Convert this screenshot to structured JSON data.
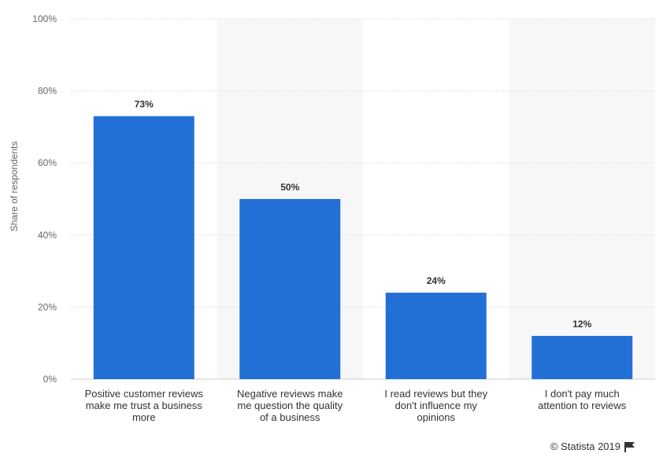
{
  "chart_data": {
    "type": "bar",
    "ylabel": "Share of respondents",
    "ylim": [
      0,
      100
    ],
    "yticks": [
      0,
      20,
      40,
      60,
      80,
      100
    ],
    "tick_suffix": "%",
    "grid": true,
    "categories": [
      [
        "Positive customer reviews",
        "make me trust a business",
        "more"
      ],
      [
        "Negative reviews make",
        "me question the quality",
        "of a business"
      ],
      [
        "I read reviews but they",
        "don't influence my",
        "opinions"
      ],
      [
        "I don't pay much",
        "attention to reviews"
      ]
    ],
    "values": [
      73,
      50,
      24,
      12
    ],
    "data_labels": [
      "73%",
      "50%",
      "24%",
      "12%"
    ],
    "bar_color": "#2270d6",
    "band_color": "#f7f7f7"
  },
  "credit": {
    "text": "© Statista 2019",
    "icon": "flag-icon"
  }
}
